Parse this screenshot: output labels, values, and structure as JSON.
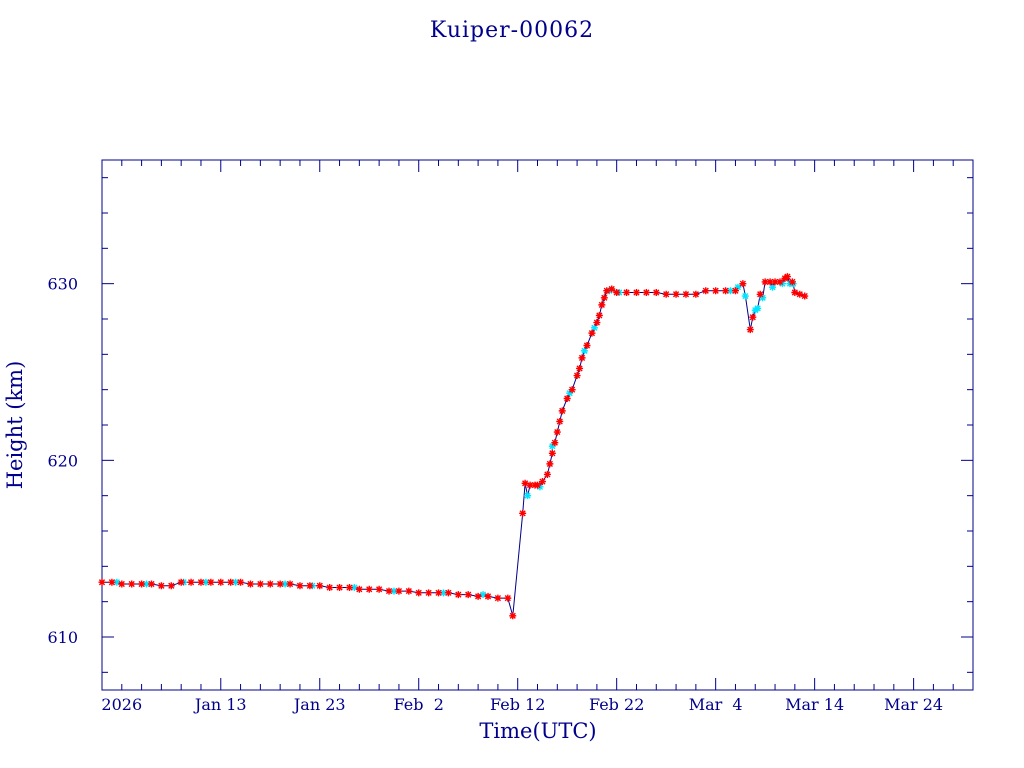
{
  "chart_data": {
    "type": "scatter",
    "title": "Kuiper-00062",
    "xlabel": "Time(UTC)",
    "ylabel": "Height (km)",
    "x_start": "2026-01-01",
    "x_end": "2026-03-30",
    "ylim": [
      607,
      637
    ],
    "x_ticks": [
      {
        "date": "2026-01-03",
        "label": "2026"
      },
      {
        "date": "2026-01-13",
        "label": "Jan 13"
      },
      {
        "date": "2026-01-23",
        "label": "Jan 23"
      },
      {
        "date": "2026-02-02",
        "label": "Feb  2"
      },
      {
        "date": "2026-02-12",
        "label": "Feb 12"
      },
      {
        "date": "2026-02-22",
        "label": "Feb 22"
      },
      {
        "date": "2026-03-04",
        "label": "Mar  4"
      },
      {
        "date": "2026-03-14",
        "label": "Mar 14"
      },
      {
        "date": "2026-03-24",
        "label": "Mar 24"
      }
    ],
    "y_ticks": [
      610,
      620,
      630
    ],
    "colors": {
      "axis": "#00008b",
      "line": "#00008b",
      "marker_primary": "#ff0000",
      "marker_secondary": "#00e5ff"
    },
    "series": [
      {
        "markers": "red-star",
        "points": [
          [
            "2026-01-01",
            613.1
          ],
          [
            "2026-01-02",
            613.1
          ],
          [
            "2026-01-03",
            613.0
          ],
          [
            "2026-01-04",
            613.0
          ],
          [
            "2026-01-05",
            613.0
          ],
          [
            "2026-01-06",
            613.0
          ],
          [
            "2026-01-07",
            612.9
          ],
          [
            "2026-01-08",
            612.9
          ],
          [
            "2026-01-09",
            613.1
          ],
          [
            "2026-01-10",
            613.1
          ],
          [
            "2026-01-11",
            613.1
          ],
          [
            "2026-01-12",
            613.1
          ],
          [
            "2026-01-13",
            613.1
          ],
          [
            "2026-01-14",
            613.1
          ],
          [
            "2026-01-15",
            613.1
          ],
          [
            "2026-01-16",
            613.0
          ],
          [
            "2026-01-17",
            613.0
          ],
          [
            "2026-01-18",
            613.0
          ],
          [
            "2026-01-19",
            613.0
          ],
          [
            "2026-01-20",
            613.0
          ],
          [
            "2026-01-21",
            612.9
          ],
          [
            "2026-01-22",
            612.9
          ],
          [
            "2026-01-23",
            612.9
          ],
          [
            "2026-01-24",
            612.8
          ],
          [
            "2026-01-25",
            612.8
          ],
          [
            "2026-01-26",
            612.8
          ],
          [
            "2026-01-27",
            612.7
          ],
          [
            "2026-01-28",
            612.7
          ],
          [
            "2026-01-29",
            612.7
          ],
          [
            "2026-01-30",
            612.6
          ],
          [
            "2026-01-31",
            612.6
          ],
          [
            "2026-02-01",
            612.6
          ],
          [
            "2026-02-02",
            612.5
          ],
          [
            "2026-02-03",
            612.5
          ],
          [
            "2026-02-04",
            612.5
          ],
          [
            "2026-02-05",
            612.5
          ],
          [
            "2026-02-06",
            612.4
          ],
          [
            "2026-02-07",
            612.4
          ],
          [
            "2026-02-08",
            612.3
          ],
          [
            "2026-02-09",
            612.3
          ],
          [
            "2026-02-10",
            612.2
          ],
          [
            "2026-02-11",
            612.2
          ],
          [
            "2026-02-11T12",
            611.2
          ],
          [
            "2026-02-12T12",
            617.0
          ],
          [
            "2026-02-12T18",
            618.7
          ],
          [
            "2026-02-13T06",
            618.6
          ],
          [
            "2026-02-13T18",
            618.6
          ],
          [
            "2026-02-14",
            618.6
          ],
          [
            "2026-02-14T12",
            618.8
          ],
          [
            "2026-02-15",
            619.2
          ],
          [
            "2026-02-15T06",
            619.8
          ],
          [
            "2026-02-15T12",
            620.4
          ],
          [
            "2026-02-15T18",
            621.0
          ],
          [
            "2026-02-16",
            621.6
          ],
          [
            "2026-02-16T06",
            622.2
          ],
          [
            "2026-02-16T12",
            622.8
          ],
          [
            "2026-02-17",
            623.5
          ],
          [
            "2026-02-17T12",
            624.0
          ],
          [
            "2026-02-18",
            624.8
          ],
          [
            "2026-02-18T06",
            625.2
          ],
          [
            "2026-02-18T12",
            625.8
          ],
          [
            "2026-02-19",
            626.5
          ],
          [
            "2026-02-19T12",
            627.2
          ],
          [
            "2026-02-20",
            627.8
          ],
          [
            "2026-02-20T06",
            628.2
          ],
          [
            "2026-02-20T12",
            628.8
          ],
          [
            "2026-02-20T18",
            629.2
          ],
          [
            "2026-02-21",
            629.6
          ],
          [
            "2026-02-21T12",
            629.7
          ],
          [
            "2026-02-22",
            629.5
          ],
          [
            "2026-02-23",
            629.5
          ],
          [
            "2026-02-24",
            629.5
          ],
          [
            "2026-02-25",
            629.5
          ],
          [
            "2026-02-26",
            629.5
          ],
          [
            "2026-02-27",
            629.4
          ],
          [
            "2026-02-28",
            629.4
          ],
          [
            "2026-03-01",
            629.4
          ],
          [
            "2026-03-02",
            629.4
          ],
          [
            "2026-03-03",
            629.6
          ],
          [
            "2026-03-04",
            629.6
          ],
          [
            "2026-03-05",
            629.6
          ],
          [
            "2026-03-06",
            629.6
          ],
          [
            "2026-03-06T18",
            630.0
          ],
          [
            "2026-03-07T12",
            627.4
          ],
          [
            "2026-03-07T18",
            628.1
          ],
          [
            "2026-03-08T12",
            629.4
          ],
          [
            "2026-03-09",
            630.1
          ],
          [
            "2026-03-09T12",
            630.1
          ],
          [
            "2026-03-10",
            630.1
          ],
          [
            "2026-03-10T12",
            630.1
          ],
          [
            "2026-03-11",
            630.3
          ],
          [
            "2026-03-11T06",
            630.4
          ],
          [
            "2026-03-11T18",
            630.1
          ],
          [
            "2026-03-12",
            629.5
          ],
          [
            "2026-03-12T12",
            629.4
          ],
          [
            "2026-03-13",
            629.3
          ]
        ]
      },
      {
        "markers": "cyan-star",
        "points": [
          [
            "2026-01-02T12",
            613.1
          ],
          [
            "2026-01-05T12",
            613.0
          ],
          [
            "2026-01-09T06",
            613.1
          ],
          [
            "2026-01-11T12",
            613.1
          ],
          [
            "2026-01-14T12",
            613.1
          ],
          [
            "2026-01-19T12",
            613.0
          ],
          [
            "2026-01-22T06",
            612.9
          ],
          [
            "2026-01-26T12",
            612.8
          ],
          [
            "2026-01-30T12",
            612.6
          ],
          [
            "2026-02-04T12",
            612.5
          ],
          [
            "2026-02-08T12",
            612.4
          ],
          [
            "2026-02-13",
            618.0
          ],
          [
            "2026-02-14T06",
            618.5
          ],
          [
            "2026-02-15T12",
            620.8
          ],
          [
            "2026-02-17T06",
            623.8
          ],
          [
            "2026-02-18T18",
            626.2
          ],
          [
            "2026-02-19T18",
            627.5
          ],
          [
            "2026-02-21T06",
            629.6
          ],
          [
            "2026-02-22T06",
            629.5
          ],
          [
            "2026-03-05T12",
            629.6
          ],
          [
            "2026-03-06T06",
            629.8
          ],
          [
            "2026-03-07",
            629.3
          ],
          [
            "2026-03-08",
            628.5
          ],
          [
            "2026-03-08T06",
            628.6
          ],
          [
            "2026-03-08T18",
            629.2
          ],
          [
            "2026-03-09T18",
            629.8
          ],
          [
            "2026-03-10T18",
            630.0
          ],
          [
            "2026-03-11T12",
            630.0
          ],
          [
            "2026-03-11T20",
            630.0
          ]
        ]
      }
    ]
  }
}
